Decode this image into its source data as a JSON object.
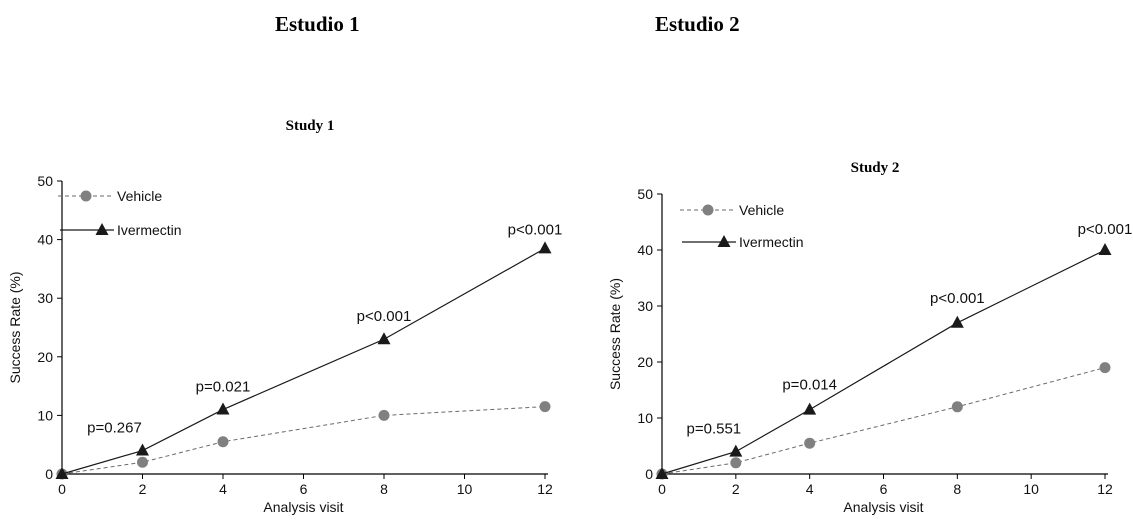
{
  "headings": [
    "Estudio 1",
    "Estudio 2"
  ],
  "colors": {
    "ivermectin": "#1a1a1a",
    "vehicle": "#808080",
    "axis": "#000000"
  },
  "chart_data": [
    {
      "type": "line",
      "title": "Study 1",
      "xlabel": "Analysis visit",
      "ylabel": "Success Rate (%)",
      "xlim": [
        0,
        12
      ],
      "ylim": [
        0,
        50
      ],
      "xticks": [
        0,
        2,
        4,
        6,
        8,
        10,
        12
      ],
      "yticks": [
        0,
        10,
        20,
        30,
        40,
        50
      ],
      "grid": false,
      "legend": "top-left",
      "series": [
        {
          "name": "Vehicle",
          "style": "dashed",
          "marker": "circle",
          "x": [
            0,
            2,
            4,
            8,
            12
          ],
          "y": [
            0,
            2,
            5.5,
            10,
            11.5
          ]
        },
        {
          "name": "Ivermectin",
          "style": "solid",
          "marker": "triangle",
          "x": [
            0,
            2,
            4,
            8,
            12
          ],
          "y": [
            0,
            4,
            11,
            23,
            38.5
          ]
        }
      ],
      "annotations": [
        {
          "text": "p=0.267",
          "x": 2,
          "y": 4
        },
        {
          "text": "p=0.021",
          "x": 4,
          "y": 11
        },
        {
          "text": "p<0.001",
          "x": 8,
          "y": 23
        },
        {
          "text": "p<0.001",
          "x": 12,
          "y": 38.5
        }
      ]
    },
    {
      "type": "line",
      "title": "Study 2",
      "xlabel": "Analysis visit",
      "ylabel": "Success Rate (%)",
      "xlim": [
        0,
        12
      ],
      "ylim": [
        0,
        50
      ],
      "xticks": [
        0,
        2,
        4,
        6,
        8,
        10,
        12
      ],
      "yticks": [
        0,
        10,
        20,
        30,
        40,
        50
      ],
      "grid": false,
      "legend": "top-left",
      "series": [
        {
          "name": "Vehicle",
          "style": "dashed",
          "marker": "circle",
          "x": [
            0,
            2,
            4,
            8,
            12
          ],
          "y": [
            0,
            2,
            5.5,
            12,
            19
          ]
        },
        {
          "name": "Ivermectin",
          "style": "solid",
          "marker": "triangle",
          "x": [
            0,
            2,
            4,
            8,
            12
          ],
          "y": [
            0,
            4,
            11.5,
            27,
            40
          ]
        }
      ],
      "annotations": [
        {
          "text": "p=0.551",
          "x": 2,
          "y": 4
        },
        {
          "text": "p=0.014",
          "x": 4,
          "y": 11.5
        },
        {
          "text": "p<0.001",
          "x": 8,
          "y": 27
        },
        {
          "text": "p<0.001",
          "x": 12,
          "y": 40
        }
      ]
    }
  ]
}
